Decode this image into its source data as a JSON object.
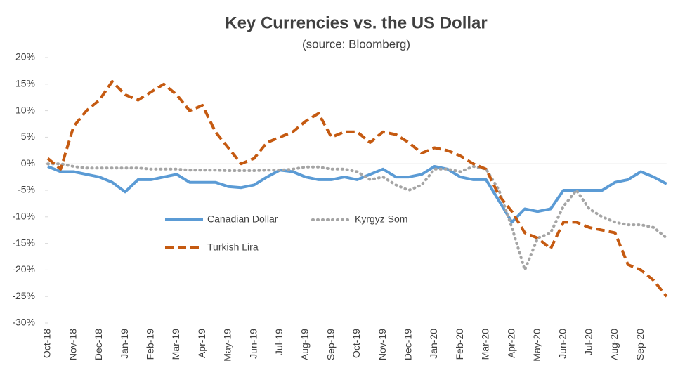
{
  "chart_data": {
    "type": "line",
    "title": "Key Currencies vs. the US Dollar",
    "subtitle": "(source: Bloomberg)",
    "categories": [
      "Oct-18",
      null,
      "Nov-18",
      null,
      "Dec-18",
      null,
      "Jan-19",
      null,
      "Feb-19",
      null,
      "Mar-19",
      null,
      "Apr-19",
      null,
      "May-19",
      null,
      "Jun-19",
      null,
      "Jul-19",
      null,
      "Aug-19",
      null,
      "Sep-19",
      null,
      "Oct-19",
      null,
      "Nov-19",
      null,
      "Dec-19",
      null,
      "Jan-20",
      null,
      "Feb-20",
      null,
      "Mar-20",
      null,
      "Apr-20",
      null,
      "May-20",
      null,
      "Jun-20",
      null,
      "Jul-20",
      null,
      "Aug-20",
      null,
      "Sep-20",
      null,
      null
    ],
    "series": [
      {
        "name": "Canadian Dollar",
        "color": "#5b9bd5",
        "dash": "solid",
        "values": [
          -0.5,
          -1.5,
          -1.5,
          -2,
          -2.5,
          -3.5,
          -5.3,
          -3,
          -3,
          -2.5,
          -2,
          -3.5,
          -3.5,
          -3.5,
          -4.3,
          -4.5,
          -4,
          -2.5,
          -1.2,
          -1.5,
          -2.5,
          -3,
          -3,
          -2.5,
          -3,
          -2,
          -1,
          -2.5,
          -2.5,
          -2,
          -0.5,
          -1,
          -2.5,
          -3,
          -3,
          -7,
          -11,
          -8.5,
          -9,
          -8.5,
          -5,
          -5,
          -5,
          -5,
          -3.5,
          -3,
          -1.5,
          -2.5,
          -3.8
        ]
      },
      {
        "name": "Kyrgyz Som",
        "color": "#a5a5a5",
        "dash": "dotted",
        "values": [
          0,
          0,
          -0.5,
          -0.8,
          -0.8,
          -0.8,
          -0.8,
          -0.8,
          -1,
          -1,
          -1,
          -1.2,
          -1.2,
          -1.2,
          -1.3,
          -1.3,
          -1.3,
          -1.2,
          -1.2,
          -1,
          -0.6,
          -0.6,
          -1,
          -1,
          -1.5,
          -3,
          -2.5,
          -4,
          -5,
          -4,
          -1,
          -1,
          -1.5,
          -0.5,
          -1,
          -5,
          -12,
          -20,
          -14,
          -13,
          -8,
          -5,
          -8.5,
          -10,
          -11,
          -11.5,
          -11.5,
          -12,
          -14
        ]
      },
      {
        "name": "Turkish Lira",
        "color": "#c55a11",
        "dash": "dashed",
        "values": [
          1,
          -1,
          7,
          10,
          12,
          15.5,
          13,
          12,
          13.5,
          15,
          13,
          10,
          11,
          6,
          3,
          0,
          1,
          4,
          5,
          6,
          8,
          9.5,
          5,
          6,
          6,
          4,
          6,
          5.5,
          4,
          2,
          3,
          2.5,
          1.5,
          0,
          -1,
          -6,
          -9,
          -13,
          -14,
          -16,
          -11,
          -11,
          -12,
          -12.5,
          -13,
          -19,
          -20,
          -22,
          -25
        ]
      }
    ],
    "ylim": [
      -30,
      20
    ],
    "yticks": [
      {
        "value": 20,
        "label": "20%"
      },
      {
        "value": 15,
        "label": "15%"
      },
      {
        "value": 10,
        "label": "10%"
      },
      {
        "value": 5,
        "label": "5%"
      },
      {
        "value": 0,
        "label": "0%"
      },
      {
        "value": -5,
        "label": "-5%"
      },
      {
        "value": -10,
        "label": "-10%"
      },
      {
        "value": -15,
        "label": "-15%"
      },
      {
        "value": -20,
        "label": "-20%"
      },
      {
        "value": -25,
        "label": "-25%"
      },
      {
        "value": -30,
        "label": "-30%"
      }
    ]
  }
}
